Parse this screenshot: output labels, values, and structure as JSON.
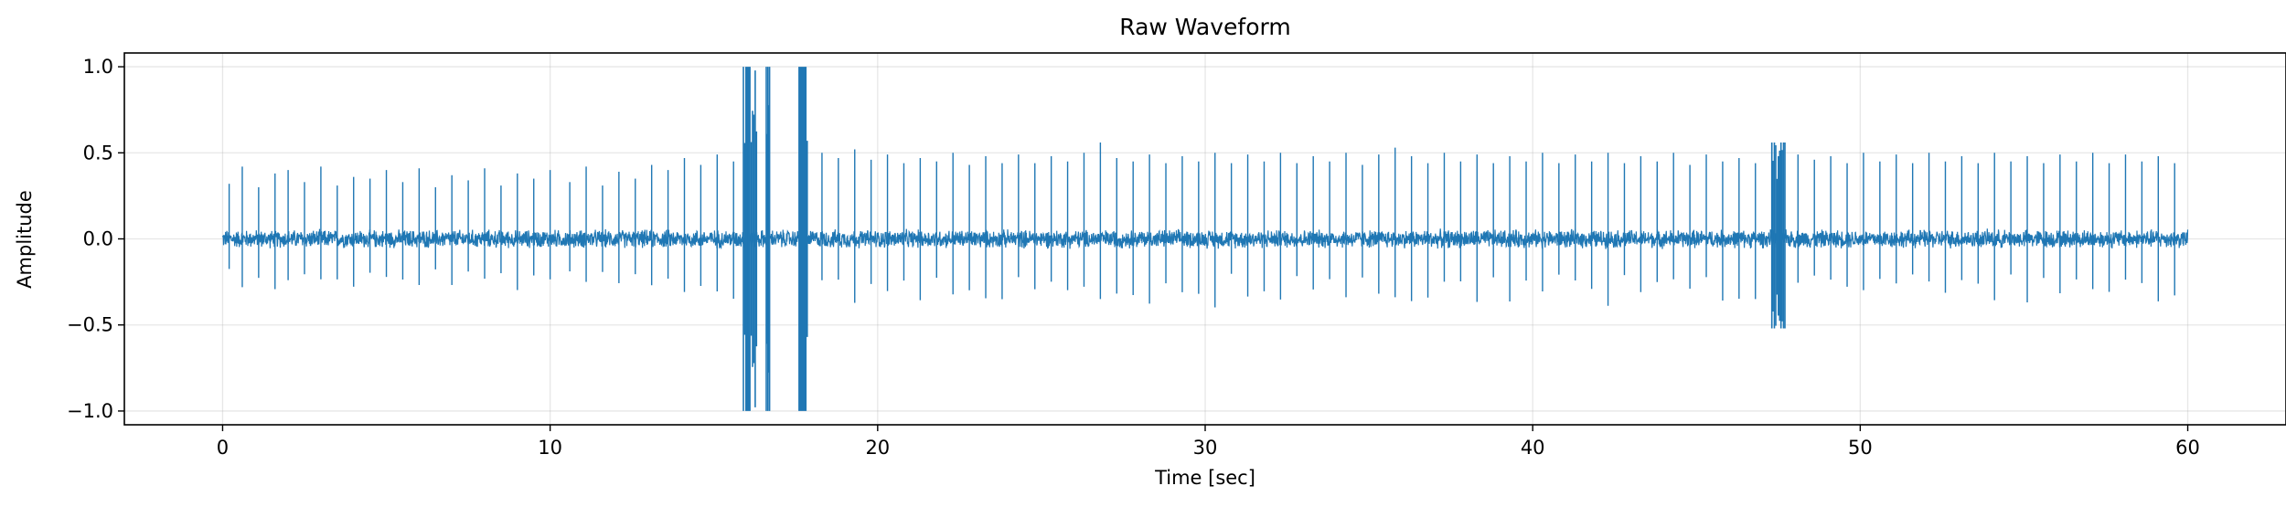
{
  "chart_data": {
    "type": "line",
    "title": "Raw Waveform",
    "xlabel": "Time [sec]",
    "ylabel": "Amplitude",
    "xlim": [
      -3,
      63
    ],
    "ylim": [
      -1.08,
      1.08
    ],
    "xticks": [
      0,
      10,
      20,
      30,
      40,
      50,
      60
    ],
    "yticks": [
      -1.0,
      -0.5,
      0.0,
      0.5,
      1.0
    ],
    "xtick_labels": [
      "0",
      "10",
      "20",
      "30",
      "40",
      "50",
      "60"
    ],
    "ytick_labels": [
      "−1.0",
      "−0.5",
      "0.0",
      "0.5",
      "1.0"
    ],
    "grid": true,
    "series": [
      {
        "color": "#1f77b4",
        "duration_sec": 60,
        "noise_amplitude": 0.06,
        "peaks": [
          {
            "x": 0.2,
            "y": 0.32
          },
          {
            "x": 0.6,
            "y": 0.42
          },
          {
            "x": 1.1,
            "y": 0.3
          },
          {
            "x": 1.6,
            "y": 0.38
          },
          {
            "x": 2.0,
            "y": 0.4
          },
          {
            "x": 2.5,
            "y": 0.33
          },
          {
            "x": 3.0,
            "y": 0.42
          },
          {
            "x": 3.5,
            "y": 0.31
          },
          {
            "x": 4.0,
            "y": 0.36
          },
          {
            "x": 4.5,
            "y": 0.35
          },
          {
            "x": 5.0,
            "y": 0.4
          },
          {
            "x": 5.5,
            "y": 0.33
          },
          {
            "x": 6.0,
            "y": 0.41
          },
          {
            "x": 6.5,
            "y": 0.3
          },
          {
            "x": 7.0,
            "y": 0.37
          },
          {
            "x": 7.5,
            "y": 0.34
          },
          {
            "x": 8.0,
            "y": 0.41
          },
          {
            "x": 8.5,
            "y": 0.31
          },
          {
            "x": 9.0,
            "y": 0.38
          },
          {
            "x": 9.5,
            "y": 0.35
          },
          {
            "x": 10.0,
            "y": 0.4
          },
          {
            "x": 10.6,
            "y": 0.33
          },
          {
            "x": 11.1,
            "y": 0.42
          },
          {
            "x": 11.6,
            "y": 0.31
          },
          {
            "x": 12.1,
            "y": 0.39
          },
          {
            "x": 12.6,
            "y": 0.35
          },
          {
            "x": 13.1,
            "y": 0.43
          },
          {
            "x": 13.6,
            "y": 0.4
          },
          {
            "x": 14.1,
            "y": 0.47
          },
          {
            "x": 14.6,
            "y": 0.43
          },
          {
            "x": 15.1,
            "y": 0.49
          },
          {
            "x": 15.6,
            "y": 0.45
          },
          {
            "x": 18.3,
            "y": 0.5
          },
          {
            "x": 18.8,
            "y": 0.47
          },
          {
            "x": 19.3,
            "y": 0.52
          },
          {
            "x": 19.8,
            "y": 0.46
          },
          {
            "x": 20.3,
            "y": 0.49
          },
          {
            "x": 20.8,
            "y": 0.44
          },
          {
            "x": 21.3,
            "y": 0.47
          },
          {
            "x": 21.8,
            "y": 0.45
          },
          {
            "x": 22.3,
            "y": 0.5
          },
          {
            "x": 22.8,
            "y": 0.43
          },
          {
            "x": 23.3,
            "y": 0.48
          },
          {
            "x": 23.8,
            "y": 0.44
          },
          {
            "x": 24.3,
            "y": 0.49
          },
          {
            "x": 24.8,
            "y": 0.44
          },
          {
            "x": 25.3,
            "y": 0.48
          },
          {
            "x": 25.8,
            "y": 0.45
          },
          {
            "x": 26.3,
            "y": 0.5
          },
          {
            "x": 26.8,
            "y": 0.56
          },
          {
            "x": 27.3,
            "y": 0.47
          },
          {
            "x": 27.8,
            "y": 0.45
          },
          {
            "x": 28.3,
            "y": 0.49
          },
          {
            "x": 28.8,
            "y": 0.44
          },
          {
            "x": 29.3,
            "y": 0.48
          },
          {
            "x": 29.8,
            "y": 0.45
          },
          {
            "x": 30.3,
            "y": 0.5
          },
          {
            "x": 30.8,
            "y": 0.44
          },
          {
            "x": 31.3,
            "y": 0.49
          },
          {
            "x": 31.8,
            "y": 0.45
          },
          {
            "x": 32.3,
            "y": 0.5
          },
          {
            "x": 32.8,
            "y": 0.44
          },
          {
            "x": 33.3,
            "y": 0.48
          },
          {
            "x": 33.8,
            "y": 0.45
          },
          {
            "x": 34.3,
            "y": 0.5
          },
          {
            "x": 34.8,
            "y": 0.43
          },
          {
            "x": 35.3,
            "y": 0.49
          },
          {
            "x": 35.8,
            "y": 0.53
          },
          {
            "x": 36.3,
            "y": 0.48
          },
          {
            "x": 36.8,
            "y": 0.44
          },
          {
            "x": 37.3,
            "y": 0.5
          },
          {
            "x": 37.8,
            "y": 0.45
          },
          {
            "x": 38.3,
            "y": 0.49
          },
          {
            "x": 38.8,
            "y": 0.44
          },
          {
            "x": 39.3,
            "y": 0.48
          },
          {
            "x": 39.8,
            "y": 0.45
          },
          {
            "x": 40.3,
            "y": 0.5
          },
          {
            "x": 40.8,
            "y": 0.44
          },
          {
            "x": 41.3,
            "y": 0.49
          },
          {
            "x": 41.8,
            "y": 0.45
          },
          {
            "x": 42.3,
            "y": 0.5
          },
          {
            "x": 42.8,
            "y": 0.44
          },
          {
            "x": 43.3,
            "y": 0.48
          },
          {
            "x": 43.8,
            "y": 0.45
          },
          {
            "x": 44.3,
            "y": 0.5
          },
          {
            "x": 44.8,
            "y": 0.43
          },
          {
            "x": 45.3,
            "y": 0.49
          },
          {
            "x": 45.8,
            "y": 0.45
          },
          {
            "x": 46.3,
            "y": 0.47
          },
          {
            "x": 46.8,
            "y": 0.44
          },
          {
            "x": 48.1,
            "y": 0.49
          },
          {
            "x": 48.6,
            "y": 0.46
          },
          {
            "x": 49.1,
            "y": 0.48
          },
          {
            "x": 49.6,
            "y": 0.44
          },
          {
            "x": 50.1,
            "y": 0.5
          },
          {
            "x": 50.6,
            "y": 0.45
          },
          {
            "x": 51.1,
            "y": 0.49
          },
          {
            "x": 51.6,
            "y": 0.44
          },
          {
            "x": 52.1,
            "y": 0.5
          },
          {
            "x": 52.6,
            "y": 0.45
          },
          {
            "x": 53.1,
            "y": 0.48
          },
          {
            "x": 53.6,
            "y": 0.44
          },
          {
            "x": 54.1,
            "y": 0.5
          },
          {
            "x": 54.6,
            "y": 0.45
          },
          {
            "x": 55.1,
            "y": 0.48
          },
          {
            "x": 55.6,
            "y": 0.44
          },
          {
            "x": 56.1,
            "y": 0.49
          },
          {
            "x": 56.6,
            "y": 0.45
          },
          {
            "x": 57.1,
            "y": 0.5
          },
          {
            "x": 57.6,
            "y": 0.44
          },
          {
            "x": 58.1,
            "y": 0.49
          },
          {
            "x": 58.6,
            "y": 0.45
          },
          {
            "x": 59.1,
            "y": 0.48
          },
          {
            "x": 59.6,
            "y": 0.44
          }
        ],
        "bursts": [
          {
            "x_start": 15.9,
            "x_end": 16.3,
            "y_min": -1.0,
            "y_max": 1.0
          },
          {
            "x_start": 16.6,
            "x_end": 16.7,
            "y_min": -1.0,
            "y_max": 1.0
          },
          {
            "x_start": 17.6,
            "x_end": 17.85,
            "y_min": -1.0,
            "y_max": 1.0
          },
          {
            "x_start": 47.3,
            "x_end": 47.7,
            "y_min": -0.52,
            "y_max": 0.56
          }
        ]
      }
    ]
  }
}
